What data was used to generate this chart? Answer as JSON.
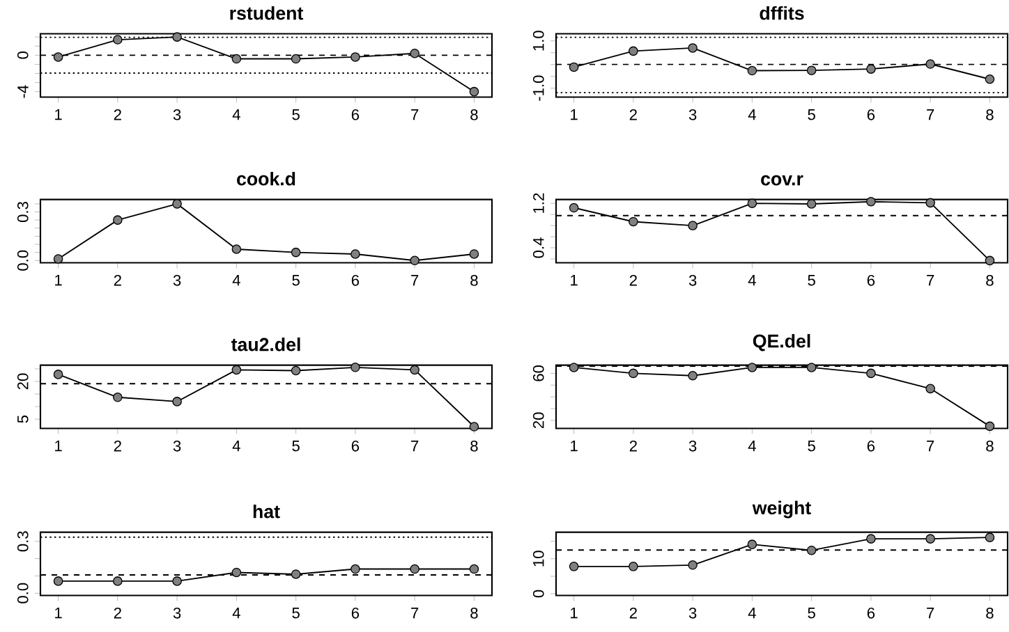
{
  "chart_data": [
    {
      "type": "line",
      "title": "rstudent",
      "x": [
        1,
        2,
        3,
        4,
        5,
        6,
        7,
        8
      ],
      "values": [
        -0.2,
        1.7,
        2.0,
        -0.4,
        -0.4,
        -0.2,
        0.2,
        -4.0
      ],
      "color": "#808080",
      "marker": "circle",
      "line_style": "solid",
      "xlim": [
        0.7,
        8.3
      ],
      "ylim": [
        -4.6,
        2.35
      ],
      "xticks": [
        1,
        2,
        3,
        4,
        5,
        6,
        7,
        8
      ],
      "yticks": [
        -4,
        {
          "value": -3,
          "label": null
        },
        {
          "value": -2,
          "label": null
        },
        {
          "value": -1,
          "label": null
        },
        0,
        {
          "value": 1,
          "label": null
        },
        {
          "value": 2,
          "label": null
        }
      ],
      "ref_lines": [
        {
          "axis": "y",
          "value": 0,
          "line_style": "dashed"
        },
        {
          "axis": "y",
          "value": 1.96,
          "line_style": "dotted"
        },
        {
          "axis": "y",
          "value": -1.96,
          "line_style": "dotted"
        }
      ]
    },
    {
      "type": "line",
      "title": "dffits",
      "x": [
        1,
        2,
        3,
        4,
        5,
        6,
        7,
        8
      ],
      "values": [
        -0.11,
        0.57,
        0.7,
        -0.26,
        -0.25,
        -0.19,
        0.02,
        -0.62
      ],
      "color": "#808080",
      "marker": "circle",
      "line_style": "solid",
      "xlim": [
        0.7,
        8.3
      ],
      "ylim": [
        -1.38,
        1.3
      ],
      "xticks": [
        1,
        2,
        3,
        4,
        5,
        6,
        7,
        8
      ],
      "yticks": [
        {
          "value": -1,
          "label": "-1.0"
        },
        {
          "value": -0.5,
          "label": null
        },
        {
          "value": 0,
          "label": null
        },
        {
          "value": 0.5,
          "label": null
        },
        {
          "value": 1,
          "label": "1.0"
        }
      ],
      "ref_lines": [
        {
          "axis": "y",
          "value": 0,
          "line_style": "dashed"
        },
        {
          "axis": "y",
          "value": 1.15,
          "line_style": "dotted"
        },
        {
          "axis": "y",
          "value": -1.19,
          "line_style": "dotted"
        }
      ]
    },
    {
      "type": "line",
      "title": "cook.d",
      "x": [
        1,
        2,
        3,
        4,
        5,
        6,
        7,
        8
      ],
      "values": [
        0.01,
        0.25,
        0.35,
        0.07,
        0.05,
        0.04,
        0.0,
        0.04
      ],
      "color": "#808080",
      "marker": "circle",
      "line_style": "solid",
      "xlim": [
        0.7,
        8.3
      ],
      "ylim": [
        -0.014,
        0.377
      ],
      "xticks": [
        1,
        2,
        3,
        4,
        5,
        6,
        7,
        8
      ],
      "yticks": [
        {
          "value": 0,
          "label": "0.0"
        },
        {
          "value": 0.05,
          "label": null
        },
        {
          "value": 0.1,
          "label": null
        },
        {
          "value": 0.15,
          "label": null
        },
        {
          "value": 0.2,
          "label": null
        },
        {
          "value": 0.25,
          "label": null
        },
        {
          "value": 0.3,
          "label": "0.3"
        },
        {
          "value": 0.35,
          "label": null
        }
      ]
    },
    {
      "type": "line",
      "title": "cov.r",
      "x": [
        1,
        2,
        3,
        4,
        5,
        6,
        7,
        8
      ],
      "values": [
        1.12,
        0.87,
        0.8,
        1.2,
        1.19,
        1.23,
        1.21,
        0.17
      ],
      "color": "#808080",
      "marker": "circle",
      "line_style": "solid",
      "xlim": [
        0.7,
        8.3
      ],
      "ylim": [
        0.13,
        1.27
      ],
      "xticks": [
        1,
        2,
        3,
        4,
        5,
        6,
        7,
        8
      ],
      "yticks": [
        {
          "value": 0.2,
          "label": null
        },
        {
          "value": 0.4,
          "label": "0.4"
        },
        {
          "value": 0.6,
          "label": null
        },
        {
          "value": 0.8,
          "label": null
        },
        {
          "value": 1.0,
          "label": null
        },
        {
          "value": 1.2,
          "label": "1.2"
        }
      ],
      "ref_lines": [
        {
          "axis": "y",
          "value": 0.98,
          "line_style": "dashed"
        }
      ]
    },
    {
      "type": "line",
      "title": "tau2.del",
      "x": [
        1,
        2,
        3,
        4,
        5,
        6,
        7,
        8
      ],
      "values": [
        22.8,
        13.7,
        12.0,
        24.6,
        24.3,
        25.6,
        24.6,
        2.0
      ],
      "color": "#808080",
      "marker": "circle",
      "line_style": "solid",
      "xlim": [
        0.7,
        8.3
      ],
      "ylim": [
        1.3,
        26.5
      ],
      "xticks": [
        1,
        2,
        3,
        4,
        5,
        6,
        7,
        8
      ],
      "yticks": [
        5,
        {
          "value": 10,
          "label": null
        },
        {
          "value": 15,
          "label": null
        },
        20,
        {
          "value": 25,
          "label": null
        }
      ],
      "ref_lines": [
        {
          "axis": "y",
          "value": 19.1,
          "line_style": "dashed"
        }
      ]
    },
    {
      "type": "line",
      "title": "QE.del",
      "x": [
        1,
        2,
        3,
        4,
        5,
        6,
        7,
        8
      ],
      "values": [
        65,
        60,
        58,
        65,
        65,
        60,
        47,
        15
      ],
      "color": "#808080",
      "marker": "circle",
      "line_style": "solid",
      "xlim": [
        0.7,
        8.3
      ],
      "ylim": [
        13.1,
        67
      ],
      "xticks": [
        1,
        2,
        3,
        4,
        5,
        6,
        7,
        8
      ],
      "yticks": [
        20,
        {
          "value": 30,
          "label": null
        },
        {
          "value": 40,
          "label": null
        },
        {
          "value": 50,
          "label": null
        },
        60
      ],
      "ref_lines": [
        {
          "axis": "y",
          "value": 66,
          "line_style": "dashed"
        }
      ]
    },
    {
      "type": "line",
      "title": "hat",
      "x": [
        1,
        2,
        3,
        4,
        5,
        6,
        7,
        8
      ],
      "values": [
        0.07,
        0.07,
        0.07,
        0.12,
        0.11,
        0.14,
        0.14,
        0.14
      ],
      "color": "#808080",
      "marker": "circle",
      "line_style": "solid",
      "xlim": [
        0.7,
        8.3
      ],
      "ylim": [
        -0.013,
        0.353
      ],
      "xticks": [
        1,
        2,
        3,
        4,
        5,
        6,
        7,
        8
      ],
      "yticks": [
        {
          "value": 0,
          "label": "0.0"
        },
        {
          "value": 0.1,
          "label": null
        },
        {
          "value": 0.2,
          "label": null
        },
        {
          "value": 0.3,
          "label": "0.3"
        }
      ],
      "ref_lines": [
        {
          "axis": "y",
          "value": 0.106,
          "line_style": "dashed"
        },
        {
          "axis": "y",
          "value": 0.324,
          "line_style": "dotted"
        }
      ]
    },
    {
      "type": "line",
      "title": "weight",
      "x": [
        1,
        2,
        3,
        4,
        5,
        6,
        7,
        8
      ],
      "values": [
        7.8,
        7.8,
        8.2,
        14.1,
        12.4,
        15.7,
        15.7,
        16.1
      ],
      "color": "#808080",
      "marker": "circle",
      "line_style": "solid",
      "xlim": [
        0.7,
        8.3
      ],
      "ylim": [
        -0.5,
        17.6
      ],
      "xticks": [
        1,
        2,
        3,
        4,
        5,
        6,
        7,
        8
      ],
      "yticks": [
        0,
        {
          "value": 5,
          "label": null
        },
        10,
        {
          "value": 15,
          "label": null
        }
      ],
      "ref_lines": [
        {
          "axis": "y",
          "value": 12.5,
          "line_style": "dashed"
        }
      ]
    }
  ]
}
